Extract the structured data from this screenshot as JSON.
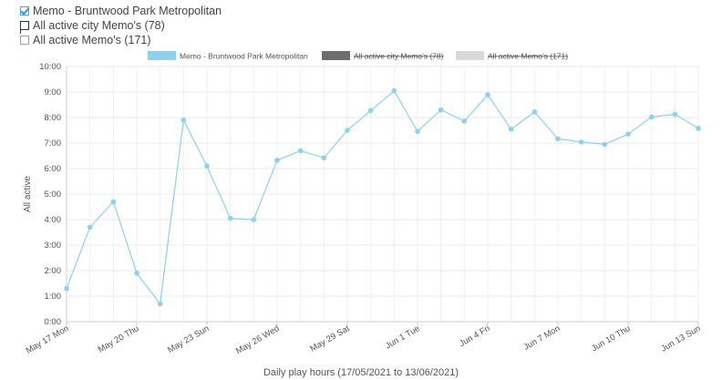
{
  "filters": [
    {
      "label": "Memo - Bruntwood Park Metropolitan",
      "state": "checked"
    },
    {
      "label": "All active city Memo's (78)",
      "state": "flag"
    },
    {
      "label": "All active Memo's (171)",
      "state": "unchecked"
    }
  ],
  "chart_data": {
    "type": "line",
    "title": "",
    "xlabel": "Daily play hours (17/05/2021 to 13/06/2021)",
    "ylabel": "All active",
    "ylim": [
      0,
      10
    ],
    "ytick_labels": [
      "0:00",
      "1:00",
      "2:00",
      "3:00",
      "4:00",
      "5:00",
      "6:00",
      "7:00",
      "8:00",
      "9:00",
      "10:00"
    ],
    "x_tick_labels": [
      "May 17 Mon",
      "May 20 Thu",
      "May 23 Sun",
      "May 26 Wed",
      "May 29 Sat",
      "Jun 1 Tue",
      "Jun 4 Fri",
      "Jun 7 Mon",
      "Jun 10 Thu",
      "Jun 13 Sun"
    ],
    "x_tick_every": 3,
    "grid": true,
    "legend_position": "top",
    "series": [
      {
        "name": "Memo - Bruntwood Park Metropolitan",
        "color": "#8fd0f0",
        "visible": true,
        "values": [
          1.3,
          3.7,
          4.7,
          1.9,
          0.7,
          7.9,
          6.1,
          4.05,
          4.0,
          6.33,
          6.7,
          6.42,
          7.5,
          8.27,
          9.05,
          7.46,
          8.3,
          7.86,
          8.89,
          7.54,
          8.22,
          7.17,
          7.04,
          6.95,
          7.35,
          8.02,
          8.13,
          7.58
        ]
      },
      {
        "name": "All active city Memo's (78)",
        "color": "#6e6e6e",
        "visible": false
      },
      {
        "name": "All active Memo's (171)",
        "color": "#d9d9d9",
        "visible": false
      }
    ]
  }
}
